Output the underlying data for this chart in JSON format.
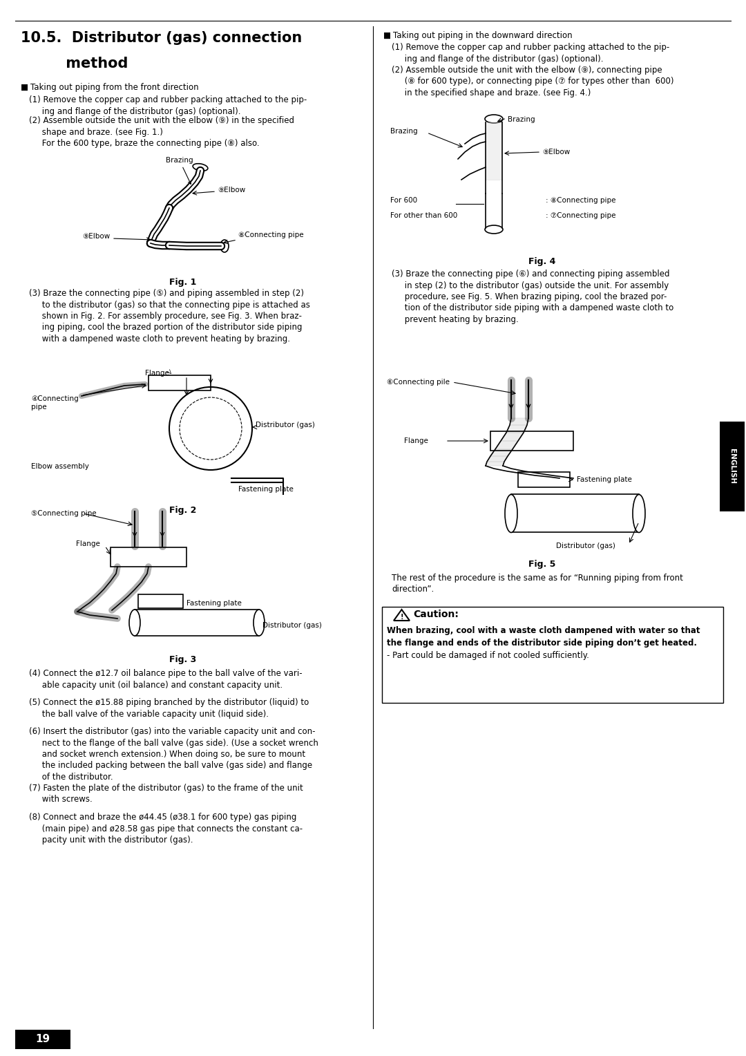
{
  "bg_color": "#ffffff",
  "title_line1": "10.5.  Distributor (gas) connection",
  "title_line2": "         method",
  "page_number": "19",
  "left_bullet": "Taking out piping from the front direction",
  "right_bullet": "Taking out piping in the downward direction",
  "left_p1": "(1) Remove the copper cap and rubber packing attached to the pip-\n     ing and flange of the distributor (gas) (optional).",
  "left_p2": "(2) Assemble outside the unit with the elbow (⑨) in the specified\n     shape and braze. (see Fig. 1.)\n     For the 600 type, braze the connecting pipe (⑧) also.",
  "left_p3": "(3) Braze the connecting pipe (⑤) and piping assembled in step (2)\n     to the distributor (gas) so that the connecting pipe is attached as\n     shown in Fig. 2. For assembly procedure, see Fig. 3. When braz-\n     ing piping, cool the brazed portion of the distributor side piping\n     with a dampened waste cloth to prevent heating by brazing.",
  "left_p4": "(4) Connect the ø12.7 oil balance pipe to the ball valve of the vari-\n     able capacity unit (oil balance) and constant capacity unit.",
  "left_p5": "(5) Connect the ø15.88 piping branched by the distributor (liquid) to\n     the ball valve of the variable capacity unit (liquid side).",
  "left_p6": "(6) Insert the distributor (gas) into the variable capacity unit and con-\n     nect to the flange of the ball valve (gas side). (Use a socket wrench\n     and socket wrench extension.) When doing so, be sure to mount\n     the included packing between the ball valve (gas side) and flange\n     of the distributor.",
  "left_p7": "(7) Fasten the plate of the distributor (gas) to the frame of the unit\n     with screws.",
  "left_p8": "(8) Connect and braze the ø44.45 (ø38.1 for 600 type) gas piping\n     (main pipe) and ø28.58 gas pipe that connects the constant ca-\n     pacity unit with the distributor (gas).",
  "right_p1": "(1) Remove the copper cap and rubber packing attached to the pip-\n     ing and flange of the distributor (gas) (optional).",
  "right_p2": "(2) Assemble outside the unit with the elbow (⑨), connecting pipe\n     (⑧ for 600 type), or connecting pipe (⑦ for types other than  600)\n     in the specified shape and braze. (see Fig. 4.)",
  "right_p3": "(3) Braze the connecting pipe (⑥) and connecting piping assembled\n     in step (2) to the distributor (gas) outside the unit. For assembly\n     procedure, see Fig. 5. When brazing piping, cool the brazed por-\n     tion of the distributor side piping with a dampened waste cloth to\n     prevent heating by brazing.",
  "right_rest": "The rest of the procedure is the same as for “Running piping from front\ndirection”.",
  "caution_title": "Caution:",
  "caution_bold": "When brazing, cool with a waste cloth dampened with water so that\nthe flange and ends of the distributor side piping don’t get heated.",
  "caution_normal": "- Part could be damaged if not cooled sufficiently."
}
